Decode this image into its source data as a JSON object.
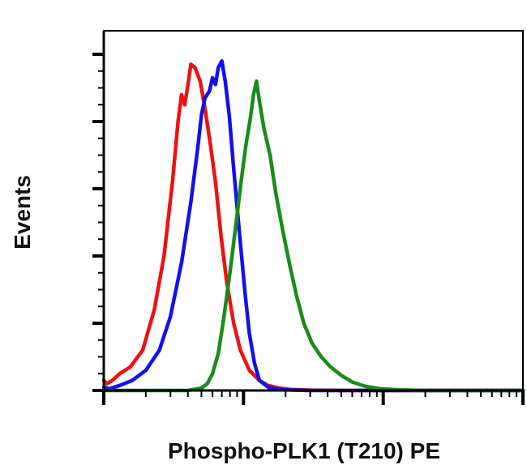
{
  "chart_data": {
    "type": "line",
    "title": "",
    "xlabel": "Phospho-PLK1 (T210) PE",
    "ylabel": "Events",
    "x_scale": "log",
    "xlim": [
      1,
      1000
    ],
    "ylim": [
      0,
      100
    ],
    "grid": false,
    "legend": "none",
    "series": [
      {
        "color": "#ee1111",
        "x": [
          1,
          1.05,
          1.15,
          1.3,
          1.55,
          1.9,
          2.3,
          2.7,
          3.1,
          3.4,
          3.6,
          3.8,
          4.0,
          4.2,
          4.5,
          4.9,
          5.3,
          5.8,
          6.3,
          6.9,
          7.6,
          8.5,
          9.5,
          11,
          13,
          15,
          18,
          22,
          30,
          50,
          100,
          1000
        ],
        "y": [
          3,
          2,
          3,
          5,
          7,
          12,
          24,
          40,
          62,
          80,
          88,
          85,
          91,
          97,
          96,
          92,
          84,
          73,
          62,
          46,
          32,
          20,
          12,
          6,
          3,
          1.5,
          0.7,
          0.3,
          0.1,
          0,
          0,
          0
        ]
      },
      {
        "color": "#1111ee",
        "x": [
          1,
          1.1,
          1.3,
          1.6,
          2.0,
          2.5,
          3.0,
          3.6,
          4.2,
          4.7,
          5.0,
          5.3,
          5.7,
          6.0,
          6.3,
          6.6,
          7.0,
          7.4,
          7.9,
          8.5,
          9.3,
          10.2,
          11,
          12,
          13,
          15,
          17,
          20,
          30,
          100,
          1000
        ],
        "y": [
          1,
          0.5,
          1.5,
          3,
          6,
          12,
          22,
          38,
          56,
          72,
          82,
          87,
          89,
          93,
          91,
          96,
          98,
          92,
          82,
          66,
          48,
          30,
          17,
          8,
          3,
          1,
          0.5,
          0.2,
          0,
          0,
          0
        ]
      },
      {
        "color": "#1a8c1a",
        "x": [
          1,
          4,
          5,
          5.5,
          6,
          6.6,
          7.2,
          8,
          8.8,
          9.6,
          10.4,
          11.2,
          11.8,
          12.4,
          13,
          14,
          15.5,
          17,
          19,
          21.5,
          24,
          27,
          31,
          36,
          42,
          50,
          60,
          75,
          95,
          130,
          200,
          1000
        ],
        "y": [
          0,
          0,
          0.7,
          2,
          5,
          11,
          21,
          35,
          49,
          62,
          73,
          81,
          88,
          92,
          86,
          78,
          70,
          59,
          48,
          37,
          28,
          20,
          14,
          10,
          7,
          4.5,
          2.5,
          1.2,
          0.5,
          0.2,
          0,
          0
        ]
      }
    ]
  }
}
